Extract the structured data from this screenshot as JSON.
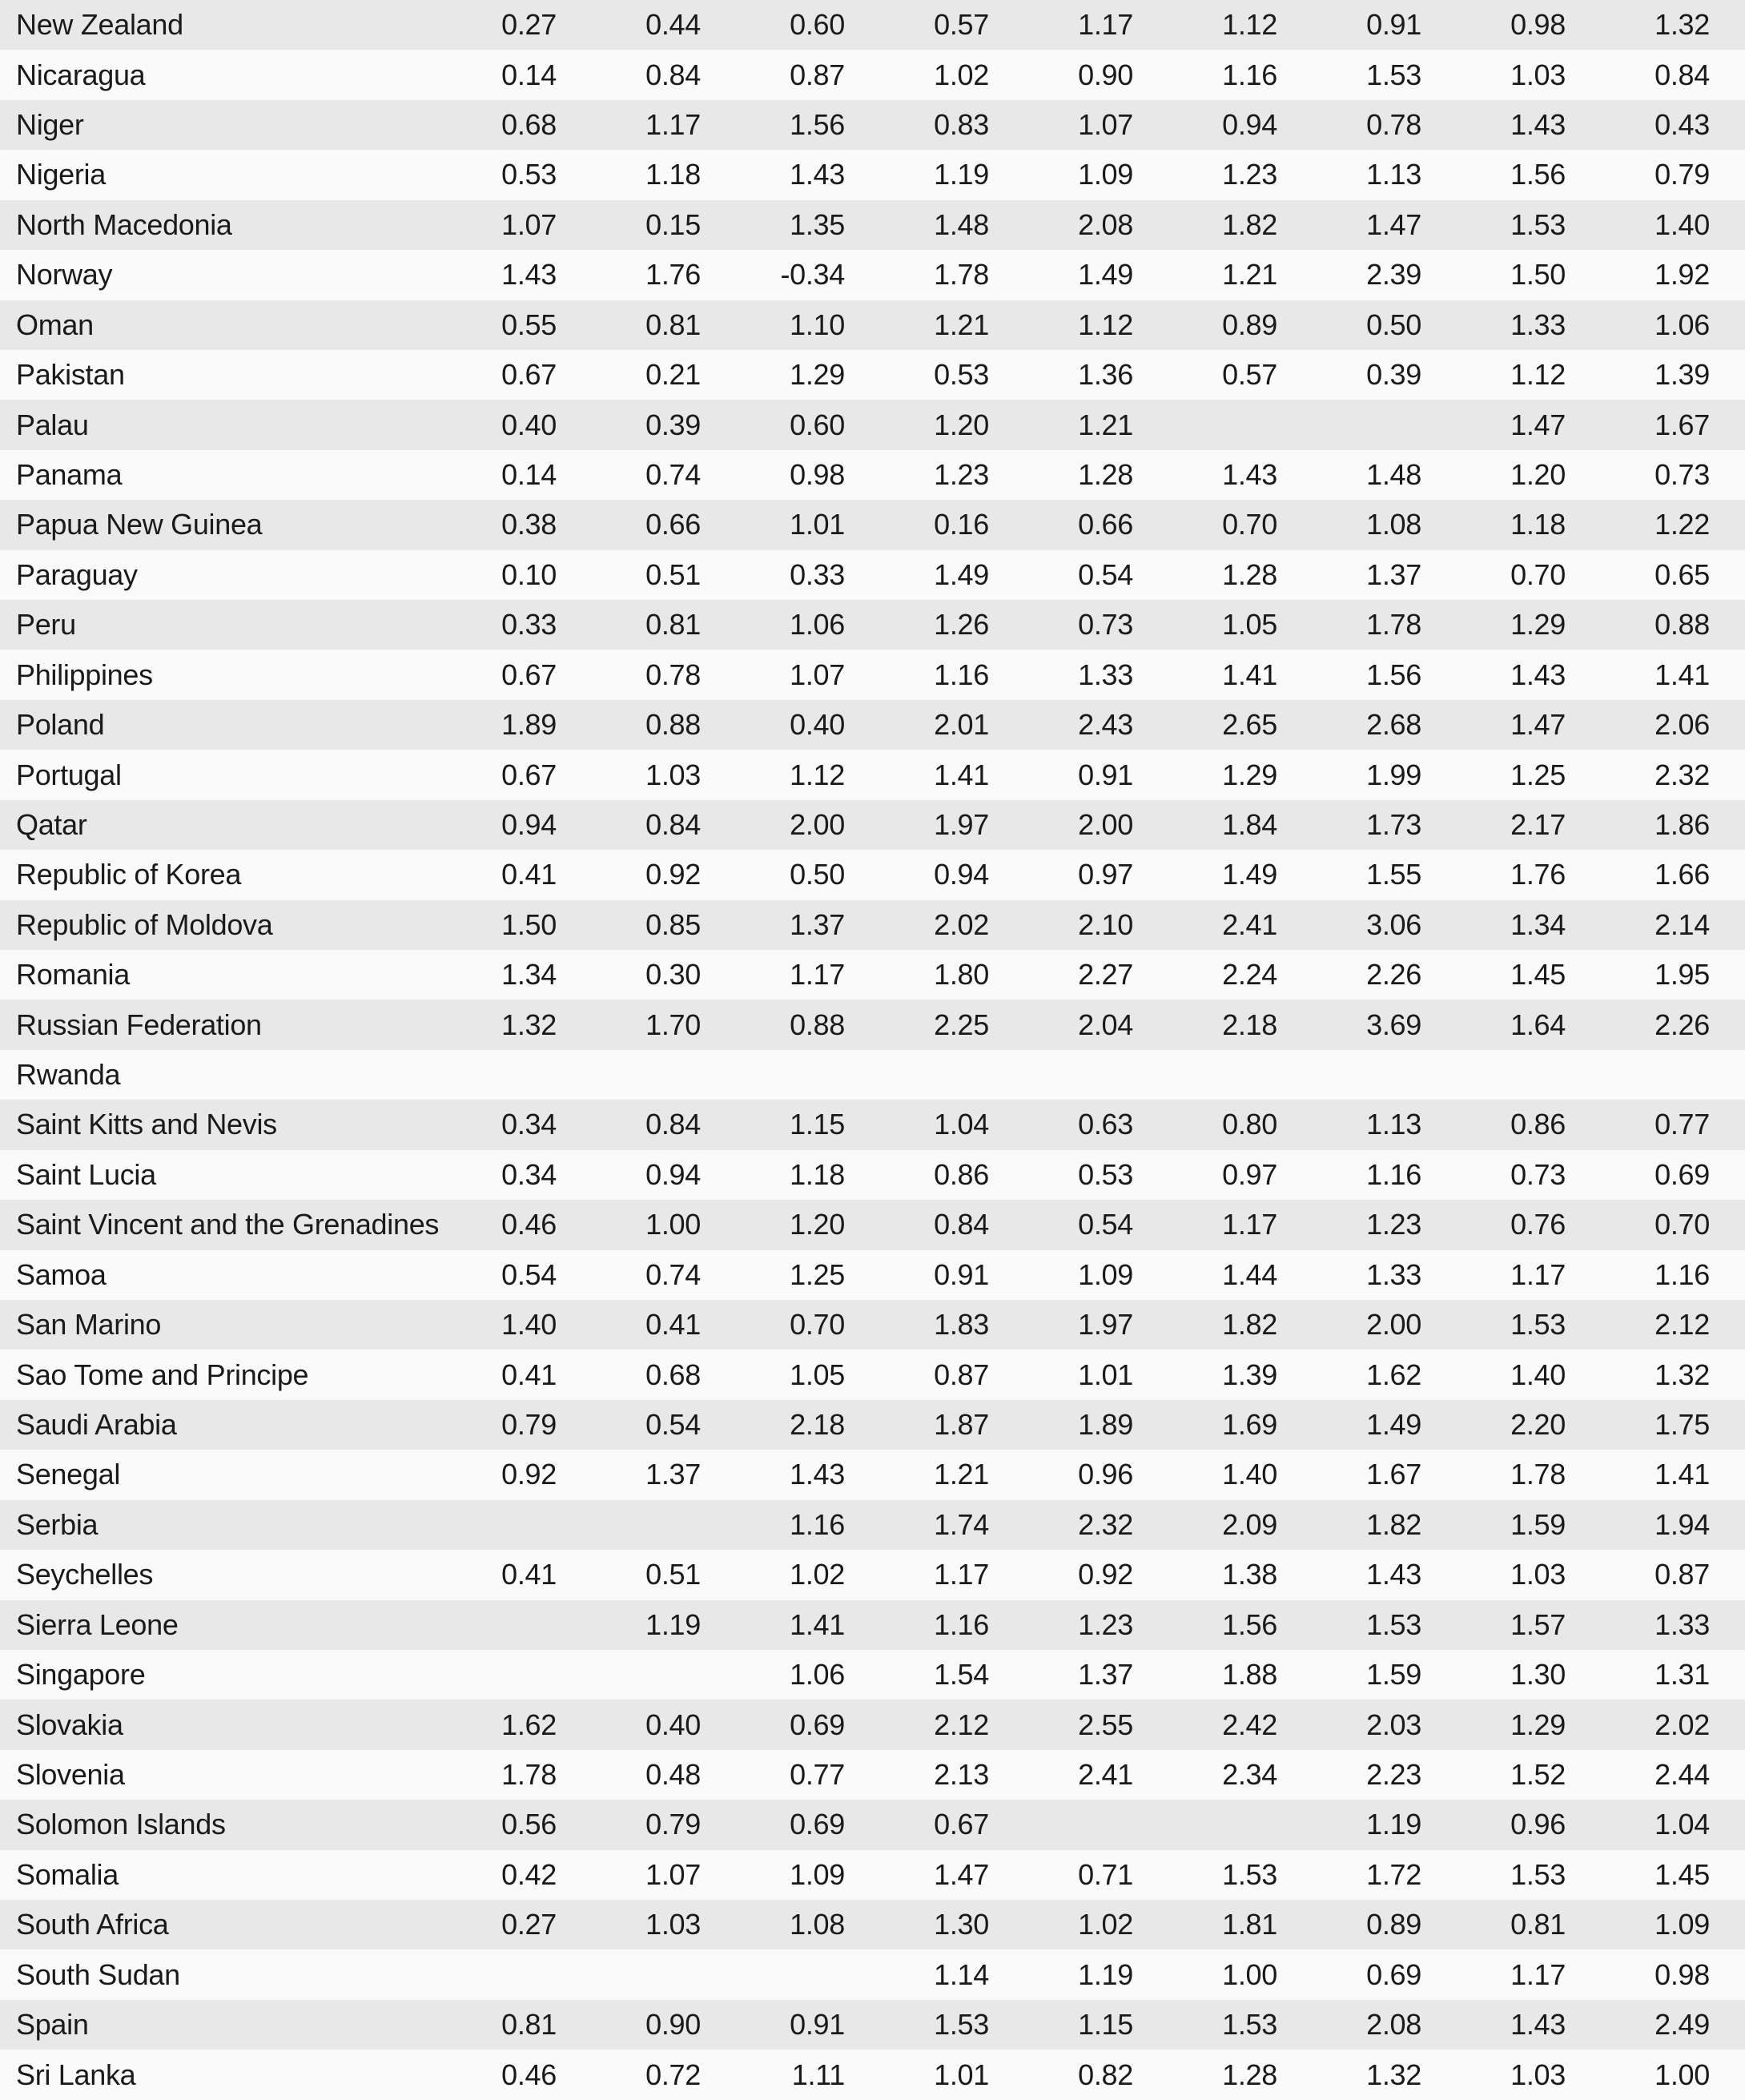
{
  "colors": {
    "row_odd_background": "#e8e8e8",
    "row_even_background": "#fafafa",
    "text": "#1a1a1a"
  },
  "table": {
    "columns_count": 9,
    "rows": [
      {
        "country": "New Zealand",
        "values": [
          "0.27",
          "0.44",
          "0.60",
          "0.57",
          "1.17",
          "1.12",
          "0.91",
          "0.98",
          "1.32"
        ]
      },
      {
        "country": "Nicaragua",
        "values": [
          "0.14",
          "0.84",
          "0.87",
          "1.02",
          "0.90",
          "1.16",
          "1.53",
          "1.03",
          "0.84"
        ]
      },
      {
        "country": "Niger",
        "values": [
          "0.68",
          "1.17",
          "1.56",
          "0.83",
          "1.07",
          "0.94",
          "0.78",
          "1.43",
          "0.43"
        ]
      },
      {
        "country": "Nigeria",
        "values": [
          "0.53",
          "1.18",
          "1.43",
          "1.19",
          "1.09",
          "1.23",
          "1.13",
          "1.56",
          "0.79"
        ]
      },
      {
        "country": "North Macedonia",
        "values": [
          "1.07",
          "0.15",
          "1.35",
          "1.48",
          "2.08",
          "1.82",
          "1.47",
          "1.53",
          "1.40"
        ]
      },
      {
        "country": "Norway",
        "values": [
          "1.43",
          "1.76",
          "-0.34",
          "1.78",
          "1.49",
          "1.21",
          "2.39",
          "1.50",
          "1.92"
        ]
      },
      {
        "country": "Oman",
        "values": [
          "0.55",
          "0.81",
          "1.10",
          "1.21",
          "1.12",
          "0.89",
          "0.50",
          "1.33",
          "1.06"
        ]
      },
      {
        "country": "Pakistan",
        "values": [
          "0.67",
          "0.21",
          "1.29",
          "0.53",
          "1.36",
          "0.57",
          "0.39",
          "1.12",
          "1.39"
        ]
      },
      {
        "country": "Palau",
        "values": [
          "0.40",
          "0.39",
          "0.60",
          "1.20",
          "1.21",
          "",
          "",
          "1.47",
          "1.67"
        ]
      },
      {
        "country": "Panama",
        "values": [
          "0.14",
          "0.74",
          "0.98",
          "1.23",
          "1.28",
          "1.43",
          "1.48",
          "1.20",
          "0.73"
        ]
      },
      {
        "country": "Papua New Guinea",
        "values": [
          "0.38",
          "0.66",
          "1.01",
          "0.16",
          "0.66",
          "0.70",
          "1.08",
          "1.18",
          "1.22"
        ]
      },
      {
        "country": "Paraguay",
        "values": [
          "0.10",
          "0.51",
          "0.33",
          "1.49",
          "0.54",
          "1.28",
          "1.37",
          "0.70",
          "0.65"
        ]
      },
      {
        "country": "Peru",
        "values": [
          "0.33",
          "0.81",
          "1.06",
          "1.26",
          "0.73",
          "1.05",
          "1.78",
          "1.29",
          "0.88"
        ]
      },
      {
        "country": "Philippines",
        "values": [
          "0.67",
          "0.78",
          "1.07",
          "1.16",
          "1.33",
          "1.41",
          "1.56",
          "1.43",
          "1.41"
        ]
      },
      {
        "country": "Poland",
        "values": [
          "1.89",
          "0.88",
          "0.40",
          "2.01",
          "2.43",
          "2.65",
          "2.68",
          "1.47",
          "2.06"
        ]
      },
      {
        "country": "Portugal",
        "values": [
          "0.67",
          "1.03",
          "1.12",
          "1.41",
          "0.91",
          "1.29",
          "1.99",
          "1.25",
          "2.32"
        ]
      },
      {
        "country": "Qatar",
        "values": [
          "0.94",
          "0.84",
          "2.00",
          "1.97",
          "2.00",
          "1.84",
          "1.73",
          "2.17",
          "1.86"
        ]
      },
      {
        "country": "Republic of Korea",
        "values": [
          "0.41",
          "0.92",
          "0.50",
          "0.94",
          "0.97",
          "1.49",
          "1.55",
          "1.76",
          "1.66"
        ]
      },
      {
        "country": "Republic of Moldova",
        "values": [
          "1.50",
          "0.85",
          "1.37",
          "2.02",
          "2.10",
          "2.41",
          "3.06",
          "1.34",
          "2.14"
        ]
      },
      {
        "country": "Romania",
        "values": [
          "1.34",
          "0.30",
          "1.17",
          "1.80",
          "2.27",
          "2.24",
          "2.26",
          "1.45",
          "1.95"
        ]
      },
      {
        "country": "Russian Federation",
        "values": [
          "1.32",
          "1.70",
          "0.88",
          "2.25",
          "2.04",
          "2.18",
          "3.69",
          "1.64",
          "2.26"
        ]
      },
      {
        "country": "Rwanda",
        "values": [
          "",
          "",
          "",
          "",
          "",
          "",
          "",
          "",
          ""
        ]
      },
      {
        "country": "Saint Kitts and Nevis",
        "values": [
          "0.34",
          "0.84",
          "1.15",
          "1.04",
          "0.63",
          "0.80",
          "1.13",
          "0.86",
          "0.77"
        ]
      },
      {
        "country": "Saint Lucia",
        "values": [
          "0.34",
          "0.94",
          "1.18",
          "0.86",
          "0.53",
          "0.97",
          "1.16",
          "0.73",
          "0.69"
        ]
      },
      {
        "country": "Saint Vincent and the Grenadines",
        "values": [
          "0.46",
          "1.00",
          "1.20",
          "0.84",
          "0.54",
          "1.17",
          "1.23",
          "0.76",
          "0.70"
        ]
      },
      {
        "country": "Samoa",
        "values": [
          "0.54",
          "0.74",
          "1.25",
          "0.91",
          "1.09",
          "1.44",
          "1.33",
          "1.17",
          "1.16"
        ]
      },
      {
        "country": "San Marino",
        "values": [
          "1.40",
          "0.41",
          "0.70",
          "1.83",
          "1.97",
          "1.82",
          "2.00",
          "1.53",
          "2.12"
        ]
      },
      {
        "country": "Sao Tome and Principe",
        "values": [
          "0.41",
          "0.68",
          "1.05",
          "0.87",
          "1.01",
          "1.39",
          "1.62",
          "1.40",
          "1.32"
        ]
      },
      {
        "country": "Saudi Arabia",
        "values": [
          "0.79",
          "0.54",
          "2.18",
          "1.87",
          "1.89",
          "1.69",
          "1.49",
          "2.20",
          "1.75"
        ]
      },
      {
        "country": "Senegal",
        "values": [
          "0.92",
          "1.37",
          "1.43",
          "1.21",
          "0.96",
          "1.40",
          "1.67",
          "1.78",
          "1.41"
        ]
      },
      {
        "country": "Serbia",
        "values": [
          "",
          "",
          "1.16",
          "1.74",
          "2.32",
          "2.09",
          "1.82",
          "1.59",
          "1.94"
        ]
      },
      {
        "country": "Seychelles",
        "values": [
          "0.41",
          "0.51",
          "1.02",
          "1.17",
          "0.92",
          "1.38",
          "1.43",
          "1.03",
          "0.87"
        ]
      },
      {
        "country": "Sierra Leone",
        "values": [
          "",
          "1.19",
          "1.41",
          "1.16",
          "1.23",
          "1.56",
          "1.53",
          "1.57",
          "1.33"
        ]
      },
      {
        "country": "Singapore",
        "values": [
          "",
          "",
          "1.06",
          "1.54",
          "1.37",
          "1.88",
          "1.59",
          "1.30",
          "1.31"
        ]
      },
      {
        "country": "Slovakia",
        "values": [
          "1.62",
          "0.40",
          "0.69",
          "2.12",
          "2.55",
          "2.42",
          "2.03",
          "1.29",
          "2.02"
        ]
      },
      {
        "country": "Slovenia",
        "values": [
          "1.78",
          "0.48",
          "0.77",
          "2.13",
          "2.41",
          "2.34",
          "2.23",
          "1.52",
          "2.44"
        ]
      },
      {
        "country": "Solomon Islands",
        "values": [
          "0.56",
          "0.79",
          "0.69",
          "0.67",
          "",
          "",
          "1.19",
          "0.96",
          "1.04"
        ]
      },
      {
        "country": "Somalia",
        "values": [
          "0.42",
          "1.07",
          "1.09",
          "1.47",
          "0.71",
          "1.53",
          "1.72",
          "1.53",
          "1.45"
        ]
      },
      {
        "country": "South Africa",
        "values": [
          "0.27",
          "1.03",
          "1.08",
          "1.30",
          "1.02",
          "1.81",
          "0.89",
          "0.81",
          "1.09"
        ]
      },
      {
        "country": "South Sudan",
        "values": [
          "",
          "",
          "",
          "1.14",
          "1.19",
          "1.00",
          "0.69",
          "1.17",
          "0.98"
        ]
      },
      {
        "country": "Spain",
        "values": [
          "0.81",
          "0.90",
          "0.91",
          "1.53",
          "1.15",
          "1.53",
          "2.08",
          "1.43",
          "2.49"
        ]
      },
      {
        "country": "Sri Lanka",
        "values": [
          "0.46",
          "0.72",
          "1.11",
          "1.01",
          "0.82",
          "1.28",
          "1.32",
          "1.03",
          "1.00"
        ]
      }
    ]
  }
}
